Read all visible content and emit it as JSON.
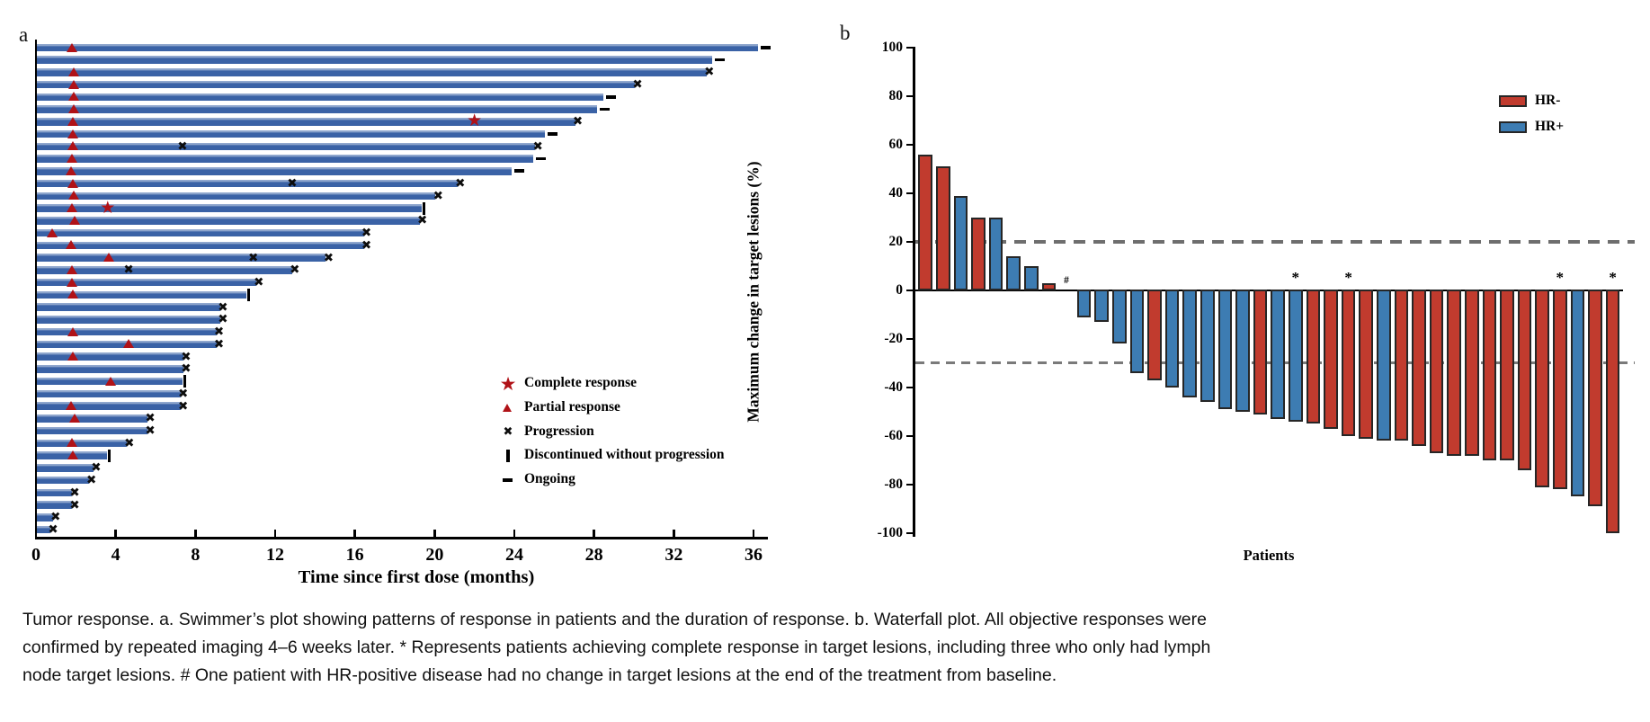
{
  "colors": {
    "swimmer_bar": "#3a62a6",
    "marker_red": "#b01217",
    "hr_neg": "#c13b2e",
    "hr_pos": "#3d7cb2",
    "dash_gray": "#6e6e6e",
    "axis_black": "#000000"
  },
  "caption": {
    "lines": [
      "Tumor response. a. Swimmer’s plot showing patterns of response in patients and the duration of response. b. Waterfall plot. All objective responses were",
      "confirmed by repeated imaging 4–6 weeks later. * Represents patients achieving complete response in target lesions, including three who only had lymph",
      "node target lesions. # One patient with HR-positive disease had no change in target lesions at the end of the treatment from baseline."
    ]
  },
  "chart_data": [
    {
      "type": "bar",
      "subtype": "swimmer_plot",
      "panel_label": "a",
      "xlabel": "Time since first dose (months)",
      "xticks": [
        0,
        4,
        8,
        12,
        16,
        20,
        24,
        28,
        32,
        36
      ],
      "xlim": [
        0,
        36.7
      ],
      "grid": false,
      "legend_items": [
        {
          "marker": "star",
          "label": "Complete response"
        },
        {
          "marker": "triangle",
          "label": "Partial response"
        },
        {
          "marker": "x",
          "label": "Progression"
        },
        {
          "marker": "vbar",
          "label": "Discontinued without progression"
        },
        {
          "marker": "dash",
          "label": "Ongoing"
        }
      ],
      "patients": [
        {
          "duration": 36.2,
          "end": "ongoing",
          "triangle": 1.8
        },
        {
          "duration": 33.9,
          "end": "ongoing"
        },
        {
          "duration": 33.6,
          "end": "progression",
          "triangle": 1.9
        },
        {
          "duration": 30.0,
          "end": "progression",
          "triangle": 1.9
        },
        {
          "duration": 28.4,
          "end": "ongoing",
          "triangle": 1.9
        },
        {
          "duration": 28.1,
          "end": "ongoing",
          "triangle": 1.9
        },
        {
          "duration": 27.0,
          "end": "progression",
          "triangle": 1.85,
          "star": 22.0
        },
        {
          "duration": 25.5,
          "end": "ongoing",
          "triangle": 1.85
        },
        {
          "duration": 25.0,
          "end": "progression",
          "triangle": 1.85,
          "x_marks": [
            7.35
          ]
        },
        {
          "duration": 24.9,
          "end": "ongoing",
          "triangle": 1.8
        },
        {
          "duration": 23.8,
          "end": "ongoing",
          "triangle": 1.76
        },
        {
          "duration": 21.1,
          "end": "progression",
          "triangle": 1.85,
          "x_marks": [
            12.85
          ]
        },
        {
          "duration": 20.0,
          "end": "progression",
          "triangle": 1.9
        },
        {
          "duration": 19.3,
          "end": "discontinued",
          "triangle": 1.8,
          "star": 3.6
        },
        {
          "duration": 19.2,
          "end": "progression",
          "triangle": 1.94
        },
        {
          "duration": 16.4,
          "end": "progression",
          "triangle": 0.8
        },
        {
          "duration": 16.4,
          "end": "progression",
          "triangle": 1.76
        },
        {
          "duration": 14.5,
          "end": "progression",
          "triangle": 3.65,
          "x_marks": [
            10.9
          ]
        },
        {
          "duration": 12.8,
          "end": "progression",
          "triangle": 1.8,
          "x_marks": [
            4.65
          ]
        },
        {
          "duration": 11.0,
          "end": "progression",
          "triangle": 1.8
        },
        {
          "duration": 10.5,
          "end": "discontinued",
          "triangle": 1.85
        },
        {
          "duration": 9.2,
          "end": "progression"
        },
        {
          "duration": 9.2,
          "end": "progression"
        },
        {
          "duration": 9.0,
          "end": "progression",
          "triangle": 1.85
        },
        {
          "duration": 9.0,
          "end": "progression",
          "triangle": 4.65
        },
        {
          "duration": 7.35,
          "end": "progression",
          "triangle": 1.85
        },
        {
          "duration": 7.35,
          "end": "progression"
        },
        {
          "duration": 7.3,
          "end": "discontinued",
          "triangle": 3.74
        },
        {
          "duration": 7.2,
          "end": "progression"
        },
        {
          "duration": 7.2,
          "end": "progression",
          "triangle": 1.76
        },
        {
          "duration": 5.55,
          "end": "progression",
          "triangle": 1.94
        },
        {
          "duration": 5.55,
          "end": "progression"
        },
        {
          "duration": 4.5,
          "end": "progression",
          "triangle": 1.8
        },
        {
          "duration": 3.5,
          "end": "discontinued",
          "triangle": 1.85
        },
        {
          "duration": 2.84,
          "end": "progression"
        },
        {
          "duration": 2.6,
          "end": "progression"
        },
        {
          "duration": 1.76,
          "end": "progression"
        },
        {
          "duration": 1.76,
          "end": "progression"
        },
        {
          "duration": 0.8,
          "end": "progression"
        },
        {
          "duration": 0.68,
          "end": "progression"
        }
      ]
    },
    {
      "type": "bar",
      "subtype": "waterfall",
      "panel_label": "b",
      "ylabel": "Maximum change in target lesions (%)",
      "xlabel": "Patients",
      "ylim": [
        -100,
        100
      ],
      "yticks": [
        100,
        80,
        60,
        40,
        20,
        0,
        -20,
        -40,
        -60,
        -80,
        -100
      ],
      "reference_lines": [
        20,
        -30
      ],
      "grid": false,
      "legend_position": "upper right",
      "legend_items": [
        {
          "label": "HR-",
          "color": "#c13b2e"
        },
        {
          "label": "HR+",
          "color": "#3d7cb2"
        }
      ],
      "bars": [
        {
          "value": 56,
          "group": "HR-"
        },
        {
          "value": 51,
          "group": "HR-"
        },
        {
          "value": 39,
          "group": "HR+"
        },
        {
          "value": 30,
          "group": "HR-"
        },
        {
          "value": 30,
          "group": "HR+"
        },
        {
          "value": 14,
          "group": "HR+"
        },
        {
          "value": 10,
          "group": "HR+"
        },
        {
          "value": 3,
          "group": "HR-"
        },
        {
          "value": 0,
          "group": "HR+",
          "mark": "#"
        },
        {
          "value": -11,
          "group": "HR+"
        },
        {
          "value": -13,
          "group": "HR+"
        },
        {
          "value": -22,
          "group": "HR+"
        },
        {
          "value": -34,
          "group": "HR+"
        },
        {
          "value": -37,
          "group": "HR-"
        },
        {
          "value": -40,
          "group": "HR+"
        },
        {
          "value": -44,
          "group": "HR+"
        },
        {
          "value": -46,
          "group": "HR+"
        },
        {
          "value": -49,
          "group": "HR+"
        },
        {
          "value": -50,
          "group": "HR+"
        },
        {
          "value": -51,
          "group": "HR-"
        },
        {
          "value": -53,
          "group": "HR+"
        },
        {
          "value": -54,
          "group": "HR+",
          "mark": "*"
        },
        {
          "value": -55,
          "group": "HR-"
        },
        {
          "value": -57,
          "group": "HR-"
        },
        {
          "value": -60,
          "group": "HR-",
          "mark": "*"
        },
        {
          "value": -61,
          "group": "HR-"
        },
        {
          "value": -62,
          "group": "HR+"
        },
        {
          "value": -62,
          "group": "HR-"
        },
        {
          "value": -64,
          "group": "HR-"
        },
        {
          "value": -67,
          "group": "HR-"
        },
        {
          "value": -68,
          "group": "HR-"
        },
        {
          "value": -68,
          "group": "HR-"
        },
        {
          "value": -70,
          "group": "HR-"
        },
        {
          "value": -70,
          "group": "HR-"
        },
        {
          "value": -74,
          "group": "HR-"
        },
        {
          "value": -81,
          "group": "HR-"
        },
        {
          "value": -82,
          "group": "HR-",
          "mark": "*"
        },
        {
          "value": -85,
          "group": "HR+"
        },
        {
          "value": -89,
          "group": "HR-"
        },
        {
          "value": -100,
          "group": "HR-",
          "mark": "*"
        }
      ]
    }
  ]
}
